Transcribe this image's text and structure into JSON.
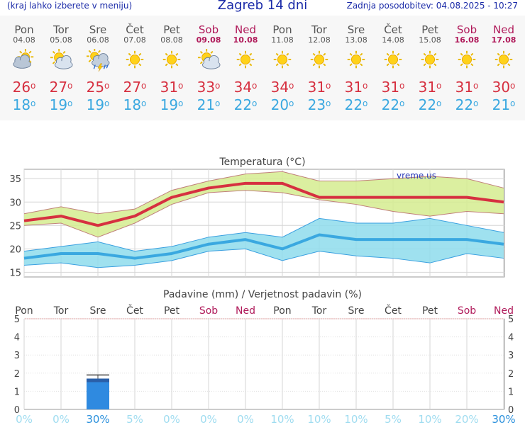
{
  "header": {
    "menu_hint": "(kraj lahko izberete v meniju)",
    "title": "Zagreb 14 dni",
    "updated": "Zadnja posodobitev: 04.08.2025 - 10:27"
  },
  "days": [
    {
      "name": "Pon",
      "date": "04.08",
      "weekend": false,
      "icon": "cloud-sun-icon",
      "max": "26",
      "min": "18"
    },
    {
      "name": "Tor",
      "date": "05.08",
      "weekend": false,
      "icon": "sun-cloud-icon",
      "max": "27",
      "min": "19"
    },
    {
      "name": "Sre",
      "date": "06.08",
      "weekend": false,
      "icon": "sun-rain-storm-icon",
      "max": "25",
      "min": "19"
    },
    {
      "name": "Čet",
      "date": "07.08",
      "weekend": false,
      "icon": "sun-icon",
      "max": "27",
      "min": "18"
    },
    {
      "name": "Pet",
      "date": "08.08",
      "weekend": false,
      "icon": "sun-icon",
      "max": "31",
      "min": "19"
    },
    {
      "name": "Sob",
      "date": "09.08",
      "weekend": true,
      "icon": "sun-cloud-icon",
      "max": "33",
      "min": "21"
    },
    {
      "name": "Ned",
      "date": "10.08",
      "weekend": true,
      "icon": "sun-icon",
      "max": "34",
      "min": "22"
    },
    {
      "name": "Pon",
      "date": "11.08",
      "weekend": false,
      "icon": "sun-icon",
      "max": "34",
      "min": "20"
    },
    {
      "name": "Tor",
      "date": "12.08",
      "weekend": false,
      "icon": "sun-icon",
      "max": "31",
      "min": "23"
    },
    {
      "name": "Sre",
      "date": "13.08",
      "weekend": false,
      "icon": "sun-icon",
      "max": "31",
      "min": "22"
    },
    {
      "name": "Čet",
      "date": "14.08",
      "weekend": false,
      "icon": "sun-icon",
      "max": "31",
      "min": "22"
    },
    {
      "name": "Pet",
      "date": "15.08",
      "weekend": false,
      "icon": "sun-icon",
      "max": "31",
      "min": "22"
    },
    {
      "name": "Sob",
      "date": "16.08",
      "weekend": true,
      "icon": "sun-icon",
      "max": "31",
      "min": "22"
    },
    {
      "name": "Ned",
      "date": "17.08",
      "weekend": true,
      "icon": "sun-icon",
      "max": "30",
      "min": "21"
    }
  ],
  "deg_symbol": "o",
  "colors": {
    "max": "#d63040",
    "min": "#3aa8e0",
    "weekend": "#b01a5a",
    "header": "#1a2aa8"
  },
  "chart_data": [
    {
      "type": "line",
      "title": "Temperatura (°C)",
      "watermark": "vreme.us",
      "ylim": [
        14,
        37
      ],
      "yticks": [
        15,
        20,
        25,
        30,
        35
      ],
      "categories": [
        "04.08",
        "05.08",
        "06.08",
        "07.08",
        "08.08",
        "09.08",
        "10.08",
        "11.08",
        "12.08",
        "13.08",
        "14.08",
        "15.08",
        "16.08",
        "17.08"
      ],
      "series": [
        {
          "values": [
            26,
            27,
            25,
            27,
            31,
            33,
            34,
            34,
            31,
            31,
            31,
            31,
            31,
            30
          ]
        },
        {
          "values": [
            18,
            19,
            19,
            18,
            19,
            21,
            22,
            20,
            23,
            22,
            22,
            22,
            22,
            21
          ]
        }
      ],
      "bands": [
        {
          "upper": [
            27.5,
            29,
            27.5,
            28.5,
            32.5,
            34.5,
            36,
            36.5,
            34.5,
            34.5,
            35,
            35.5,
            35,
            33
          ],
          "lower": [
            25,
            25.5,
            22.5,
            25.5,
            29.5,
            32,
            32.5,
            32,
            30.5,
            29.5,
            28,
            27,
            28,
            27.5
          ]
        },
        {
          "upper": [
            19.5,
            20.5,
            21.5,
            19.5,
            20.5,
            22.5,
            23.5,
            22.5,
            26.5,
            25.5,
            25.5,
            26.5,
            25,
            23.5
          ],
          "lower": [
            16.5,
            17,
            16,
            16.5,
            17.5,
            19.5,
            20,
            17.5,
            19.5,
            18.5,
            18,
            17,
            19,
            18
          ]
        }
      ]
    },
    {
      "type": "bar",
      "title": "Padavine (mm) / Verjetnost padavin (%)",
      "ylim": [
        0,
        5
      ],
      "yticks": [
        0,
        1,
        2,
        3,
        4,
        5
      ],
      "day_names": [
        "Pon",
        "Tor",
        "Sre",
        "Čet",
        "Pet",
        "Sob",
        "Ned",
        "Pon",
        "Tor",
        "Sre",
        "Čet",
        "Pet",
        "Sob",
        "Ned"
      ],
      "values": [
        0,
        0,
        1.7,
        0,
        0,
        0,
        0,
        0,
        0,
        0,
        0,
        0,
        0,
        0
      ],
      "range_high": [
        0,
        0,
        1.9,
        0,
        0,
        0,
        0,
        0,
        0,
        0,
        0,
        0,
        0,
        0
      ],
      "probabilities": [
        "0%",
        "0%",
        "30%",
        "5%",
        "0%",
        "0%",
        "0%",
        "10%",
        "10%",
        "10%",
        "5%",
        "10%",
        "20%",
        "30%"
      ]
    }
  ]
}
